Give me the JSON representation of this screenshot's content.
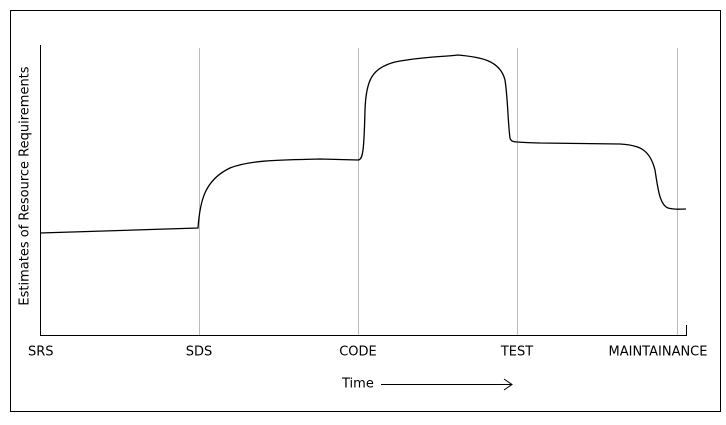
{
  "y_axis_label": "Estimates of Resource Requirements",
  "phases": [
    "SRS",
    "SDS",
    "CODE",
    "TEST",
    "MAINTAINANCE"
  ],
  "x_axis_label": "Time"
}
